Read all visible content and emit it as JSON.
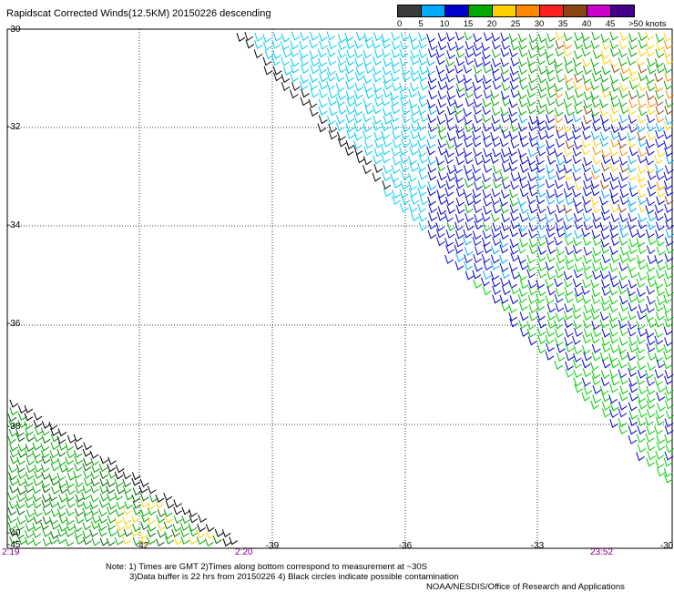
{
  "title": "Rapidscat Corrected Winds(12.5KM) 20150226 descending",
  "legend": {
    "labels": [
      "0",
      "5",
      "10",
      "15",
      "20",
      "25",
      "30",
      "35",
      "40",
      "45",
      ">50 knots"
    ],
    "colors": [
      "#3a3a3a",
      "#00aaff",
      "#0000cc",
      "#00aa00",
      "#ffd000",
      "#ff8800",
      "#ff2020",
      "#8b4513",
      "#cc00cc",
      "#440088"
    ]
  },
  "axes": {
    "y_labels": [
      "-30",
      "-32",
      "-34",
      "-36",
      "-38",
      "-40",
      "-45"
    ],
    "x_labels": [
      "-42",
      "-39",
      "-36",
      "-33",
      "-30"
    ]
  },
  "times": {
    "left_bottom": "2:19",
    "mid": "2:20",
    "right": "23:52"
  },
  "notes": {
    "line1": "Note: 1) Times are GMT 2)Times along bottom correspond to measurement at ~30S",
    "line2": "3)Data buffer is 22 hrs from 20150226 4) Black circles indicate possible contamination",
    "line3": "NOAA/NESDIS/Office of Research and Applications"
  },
  "chart_data": {
    "type": "map-wind-barbs",
    "lat_range": [
      -40.5,
      -30
    ],
    "lon_range": [
      -44.5,
      -30
    ],
    "grid": true
  }
}
